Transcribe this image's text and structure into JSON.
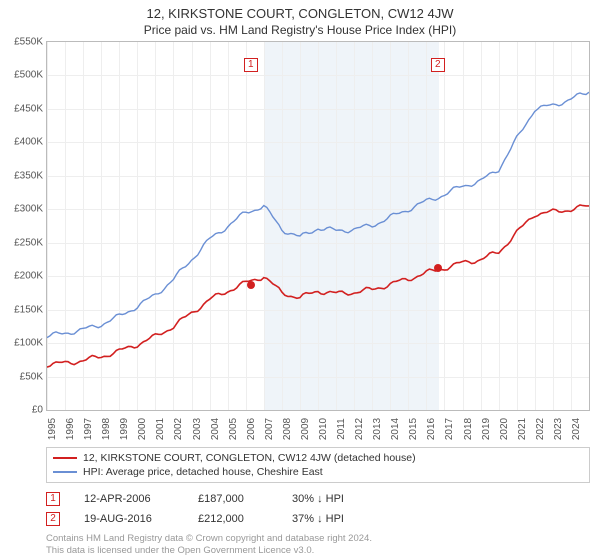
{
  "title": "12, KIRKSTONE COURT, CONGLETON, CW12 4JW",
  "subtitle": "Price paid vs. HM Land Registry's House Price Index (HPI)",
  "chart": {
    "type": "line",
    "background_color": "#ffffff",
    "grid_color": "#eeeeee",
    "axis_color": "#bbbbbb",
    "text_color": "#555555",
    "y": {
      "min": 0,
      "max": 550,
      "ticks": [
        0,
        50,
        100,
        150,
        200,
        250,
        300,
        350,
        400,
        450,
        500,
        550
      ],
      "labels": [
        "£0",
        "£50K",
        "£100K",
        "£150K",
        "£200K",
        "£250K",
        "£300K",
        "£350K",
        "£400K",
        "£450K",
        "£500K",
        "£550K"
      ],
      "fontsize": 10
    },
    "x": {
      "min": 1995,
      "max": 2025,
      "ticks": [
        1995,
        1996,
        1997,
        1998,
        1999,
        2000,
        2001,
        2002,
        2003,
        2004,
        2005,
        2006,
        2007,
        2008,
        2009,
        2010,
        2011,
        2012,
        2013,
        2014,
        2015,
        2016,
        2017,
        2018,
        2019,
        2020,
        2021,
        2022,
        2023,
        2024
      ],
      "fontsize": 10
    },
    "shaded_bands": [
      {
        "from": 2007.0,
        "to": 2016.7,
        "color": "rgba(100,150,200,0.10)"
      }
    ],
    "series": [
      {
        "id": "hpi",
        "label": "HPI: Average price, detached house, Cheshire East",
        "color": "#6a8fd4",
        "line_width": 1.4,
        "x": [
          1995,
          1996,
          1997,
          1998,
          1999,
          2000,
          2001,
          2002,
          2003,
          2004,
          2005,
          2006,
          2007,
          2008,
          2009,
          2010,
          2011,
          2012,
          2013,
          2014,
          2015,
          2016,
          2017,
          2018,
          2019,
          2020,
          2021,
          2022,
          2023,
          2024,
          2025
        ],
        "y": [
          110,
          115,
          120,
          128,
          140,
          155,
          172,
          195,
          225,
          255,
          275,
          295,
          305,
          270,
          258,
          272,
          268,
          270,
          276,
          288,
          300,
          312,
          322,
          335,
          342,
          360,
          405,
          450,
          455,
          465,
          475
        ]
      },
      {
        "id": "property",
        "label": "12, KIRKSTONE COURT, CONGLETON, CW12 4JW (detached house)",
        "color": "#d22020",
        "line_width": 1.6,
        "x": [
          1995,
          1996,
          1997,
          1998,
          1999,
          2000,
          2001,
          2002,
          2003,
          2004,
          2005,
          2006,
          2007,
          2008,
          2009,
          2010,
          2011,
          2012,
          2013,
          2014,
          2015,
          2016,
          2017,
          2018,
          2019,
          2020,
          2021,
          2022,
          2023,
          2024,
          2025
        ],
        "y": [
          68,
          70,
          74,
          80,
          88,
          98,
          110,
          125,
          145,
          165,
          178,
          190,
          200,
          175,
          168,
          178,
          174,
          176,
          180,
          188,
          196,
          205,
          212,
          220,
          225,
          236,
          265,
          293,
          296,
          300,
          305
        ]
      }
    ],
    "sale_markers": [
      {
        "n": "1",
        "year": 2006.28,
        "price_k": 187,
        "box_color": "#d22020"
      },
      {
        "n": "2",
        "year": 2016.63,
        "price_k": 212,
        "box_color": "#d22020"
      }
    ]
  },
  "legend": {
    "items": [
      {
        "label": "12, KIRKSTONE COURT, CONGLETON, CW12 4JW (detached house)",
        "color": "#d22020"
      },
      {
        "label": "HPI: Average price, detached house, Cheshire East",
        "color": "#6a8fd4"
      }
    ],
    "fontsize": 10.5,
    "border_color": "#cccccc"
  },
  "sales": [
    {
      "n": "1",
      "date": "12-APR-2006",
      "price": "£187,000",
      "diff": "30% ↓ HPI",
      "box_color": "#d22020"
    },
    {
      "n": "2",
      "date": "19-AUG-2016",
      "price": "£212,000",
      "diff": "37% ↓ HPI",
      "box_color": "#d22020"
    }
  ],
  "attribution": {
    "line1": "Contains HM Land Registry data © Crown copyright and database right 2024.",
    "line2": "This data is licensed under the Open Government Licence v3.0."
  }
}
